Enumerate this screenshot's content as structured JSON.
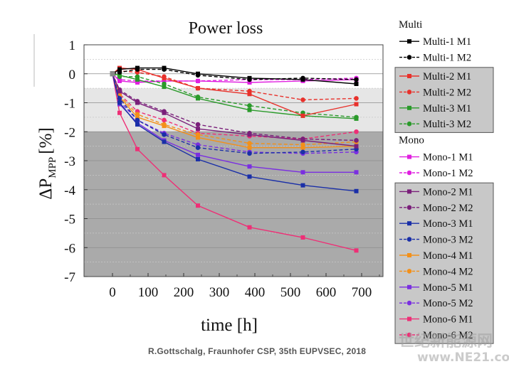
{
  "chart_data": {
    "type": "line",
    "title": "Power loss",
    "xlabel": "time [h]",
    "ylabel": "ΔP",
    "ylabel_sub": "MPP",
    "ylabel_unit": "[%]",
    "xlim": [
      -80,
      760
    ],
    "ylim": [
      -7,
      1
    ],
    "x_ticks": [
      0,
      100,
      200,
      300,
      400,
      500,
      600,
      700
    ],
    "y_ticks": [
      1,
      0,
      -1,
      -2,
      -3,
      -4,
      -5,
      -6,
      -7
    ],
    "bands": [
      {
        "from": 0.5,
        "to": -0.5,
        "color": "#ffffff"
      },
      {
        "from": -0.5,
        "to": -2.0,
        "color": "#e6e6e6"
      },
      {
        "from": -2.0,
        "to": -7.0,
        "color": "#aaaaaa"
      }
    ],
    "legend_position": "right",
    "legend_groups": [
      {
        "title": "Multi",
        "shaded": false,
        "series": [
          "Multi-1 M1",
          "Multi-1 M2"
        ]
      },
      {
        "title": "",
        "shaded": true,
        "series": [
          "Multi-2 M1",
          "Multi-2 M2",
          "Multi-3 M1",
          "Multi-3 M2"
        ]
      },
      {
        "title": "Mono",
        "shaded": false,
        "series": [
          "Mono-1 M1",
          "Mono-1 M2"
        ]
      },
      {
        "title": "",
        "shaded": true,
        "series": [
          "Mono-2 M1",
          "Mono-2 M2",
          "Mono-3 M1",
          "Mono-3 M2",
          "Mono-4 M1",
          "Mono-4 M2",
          "Mono-5 M1",
          "Mono-5 M2",
          "Mono-6 M1",
          "Mono-6 M2"
        ]
      }
    ],
    "series": [
      {
        "name": "Multi-1 M1",
        "color": "#000000",
        "dash": false,
        "marker": "square",
        "x": [
          0,
          20,
          70,
          145,
          240,
          385,
          535,
          685
        ],
        "y": [
          0,
          0.15,
          0.2,
          0.2,
          0.0,
          -0.15,
          -0.2,
          -0.35
        ]
      },
      {
        "name": "Multi-1 M2",
        "color": "#000000",
        "dash": true,
        "marker": "circle",
        "x": [
          0,
          20,
          70,
          145,
          240,
          385,
          535,
          685
        ],
        "y": [
          0,
          0.05,
          0.15,
          0.15,
          -0.05,
          -0.2,
          -0.15,
          -0.2
        ]
      },
      {
        "name": "Multi-2 M1",
        "color": "#e8312b",
        "dash": false,
        "marker": "square",
        "x": [
          0,
          20,
          70,
          145,
          240,
          385,
          535,
          685
        ],
        "y": [
          0,
          0.2,
          0.15,
          -0.15,
          -0.5,
          -0.7,
          -1.45,
          -1.05
        ]
      },
      {
        "name": "Multi-2 M2",
        "color": "#e8312b",
        "dash": true,
        "marker": "circle",
        "x": [
          0,
          20,
          70,
          145,
          240,
          385,
          535,
          685
        ],
        "y": [
          0,
          0.1,
          0.05,
          -0.1,
          -0.5,
          -0.6,
          -0.9,
          -0.85
        ]
      },
      {
        "name": "Multi-3 M1",
        "color": "#2a9a2a",
        "dash": false,
        "marker": "square",
        "x": [
          0,
          20,
          70,
          145,
          240,
          385,
          535,
          685
        ],
        "y": [
          0,
          -0.05,
          -0.2,
          -0.45,
          -0.85,
          -1.25,
          -1.45,
          -1.55
        ]
      },
      {
        "name": "Multi-3 M2",
        "color": "#2a9a2a",
        "dash": true,
        "marker": "circle",
        "x": [
          0,
          20,
          70,
          145,
          240,
          385,
          535,
          685
        ],
        "y": [
          0,
          -0.1,
          -0.1,
          -0.35,
          -0.8,
          -1.1,
          -1.35,
          -1.5
        ]
      },
      {
        "name": "Mono-1 M1",
        "color": "#e020e0",
        "dash": false,
        "marker": "square",
        "x": [
          0,
          20,
          70,
          145,
          240,
          385,
          535,
          685
        ],
        "y": [
          0,
          -0.25,
          -0.3,
          -0.25,
          -0.25,
          -0.3,
          -0.25,
          -0.2
        ]
      },
      {
        "name": "Mono-1 M2",
        "color": "#e020e0",
        "dash": true,
        "marker": "circle",
        "x": [
          0,
          20,
          70,
          145,
          240,
          385,
          535,
          685
        ],
        "y": [
          0,
          -0.2,
          -0.25,
          -0.25,
          -0.25,
          -0.2,
          -0.2,
          -0.15
        ]
      },
      {
        "name": "Mono-2 M1",
        "color": "#7a1f7a",
        "dash": false,
        "marker": "square",
        "x": [
          0,
          20,
          70,
          145,
          240,
          385,
          535,
          685
        ],
        "y": [
          0,
          -0.6,
          -1.0,
          -1.35,
          -1.9,
          -2.1,
          -2.3,
          -2.5
        ]
      },
      {
        "name": "Mono-2 M2",
        "color": "#7a1f7a",
        "dash": true,
        "marker": "circle",
        "x": [
          0,
          20,
          70,
          145,
          240,
          385,
          535,
          685
        ],
        "y": [
          0,
          -0.55,
          -0.95,
          -1.3,
          -1.75,
          -2.05,
          -2.25,
          -2.3
        ]
      },
      {
        "name": "Mono-3 M1",
        "color": "#1a2fa8",
        "dash": false,
        "marker": "square",
        "x": [
          0,
          20,
          70,
          145,
          240,
          385,
          535,
          685
        ],
        "y": [
          0,
          -1.0,
          -1.75,
          -2.35,
          -2.95,
          -3.55,
          -3.85,
          -4.05
        ]
      },
      {
        "name": "Mono-3 M2",
        "color": "#1a2fa8",
        "dash": true,
        "marker": "circle",
        "x": [
          0,
          20,
          70,
          145,
          240,
          385,
          535,
          685
        ],
        "y": [
          0,
          -0.85,
          -1.6,
          -2.1,
          -2.55,
          -2.75,
          -2.7,
          -2.6
        ]
      },
      {
        "name": "Mono-4 M1",
        "color": "#f39019",
        "dash": false,
        "marker": "square",
        "x": [
          0,
          20,
          70,
          145,
          240,
          385,
          535,
          685
        ],
        "y": [
          0,
          -0.8,
          -1.5,
          -1.8,
          -2.2,
          -2.55,
          -2.55,
          -2.5
        ]
      },
      {
        "name": "Mono-4 M2",
        "color": "#f39019",
        "dash": true,
        "marker": "circle",
        "x": [
          0,
          20,
          70,
          145,
          240,
          385,
          535,
          685
        ],
        "y": [
          0,
          -0.75,
          -1.4,
          -1.75,
          -2.1,
          -2.4,
          -2.45,
          -2.35
        ]
      },
      {
        "name": "Mono-5 M1",
        "color": "#7a2fe0",
        "dash": false,
        "marker": "square",
        "x": [
          0,
          20,
          70,
          145,
          240,
          385,
          535,
          685
        ],
        "y": [
          0,
          -1.05,
          -1.7,
          -2.3,
          -2.8,
          -3.2,
          -3.4,
          -3.4
        ]
      },
      {
        "name": "Mono-5 M2",
        "color": "#7a2fe0",
        "dash": true,
        "marker": "circle",
        "x": [
          0,
          20,
          70,
          145,
          240,
          385,
          535,
          685
        ],
        "y": [
          0,
          -0.95,
          -1.6,
          -2.05,
          -2.45,
          -2.7,
          -2.75,
          -2.7
        ]
      },
      {
        "name": "Mono-6 M1",
        "color": "#ee2f76",
        "dash": false,
        "marker": "square",
        "x": [
          0,
          20,
          70,
          145,
          240,
          385,
          535,
          685
        ],
        "y": [
          0,
          -1.35,
          -2.6,
          -3.5,
          -4.55,
          -5.3,
          -5.65,
          -6.1
        ]
      },
      {
        "name": "Mono-6 M2",
        "color": "#ee2f76",
        "dash": true,
        "marker": "circle",
        "x": [
          0,
          20,
          70,
          145,
          240,
          385,
          535,
          685
        ],
        "y": [
          0,
          -0.7,
          -1.3,
          -1.6,
          -2.05,
          -2.15,
          -2.25,
          -2.0
        ]
      }
    ]
  },
  "footer": {
    "credit": "R.Gottschalg, Fraunhofer CSP, 35th EUPVSEC, 2018"
  },
  "watermark": {
    "line1": "世纪新能源网",
    "line2": "www.NE21.com",
    "line3": "能源新视界"
  }
}
